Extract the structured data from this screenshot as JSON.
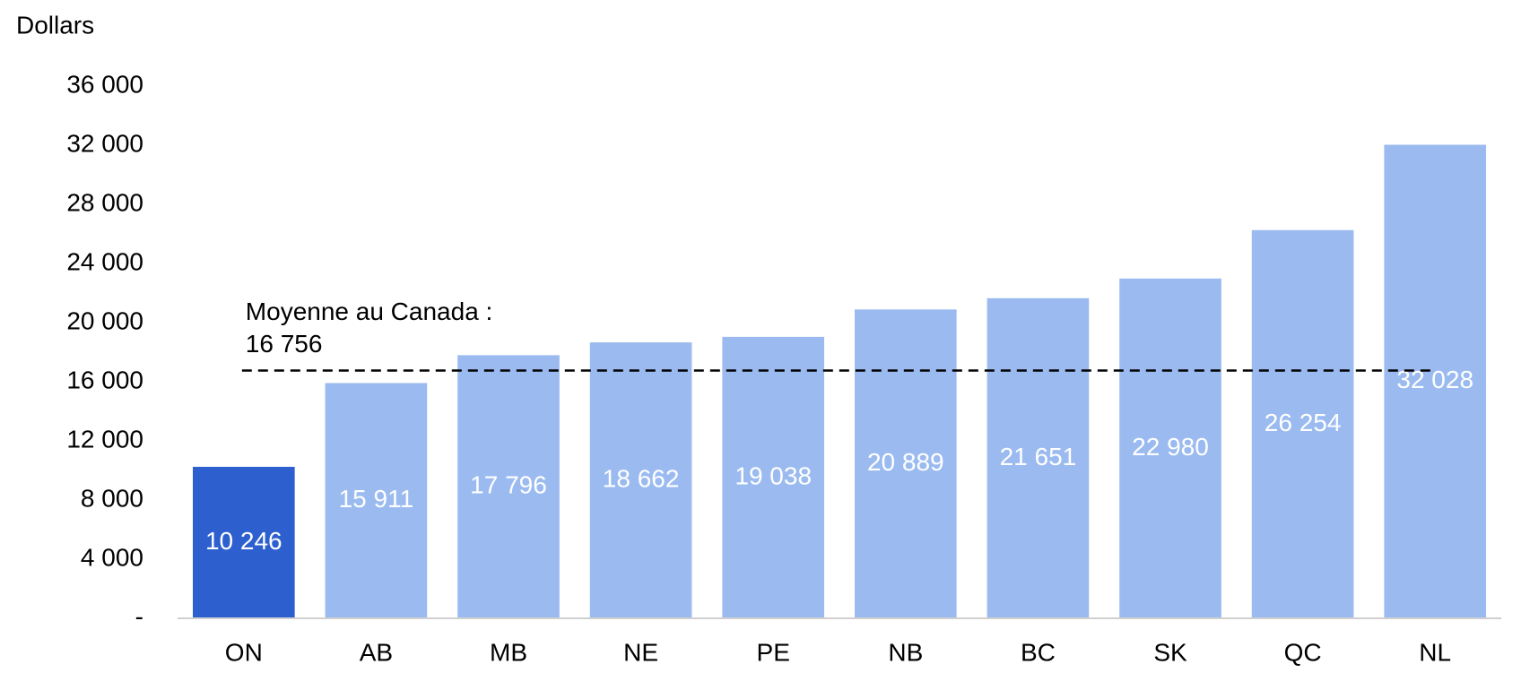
{
  "chart_data": {
    "type": "bar",
    "y_label": "Dollars",
    "categories": [
      "ON",
      "AB",
      "MB",
      "NE",
      "PE",
      "NB",
      "BC",
      "SK",
      "QC",
      "NL"
    ],
    "values": [
      10246,
      15911,
      17796,
      18662,
      19038,
      20889,
      21651,
      22980,
      26254,
      32028
    ],
    "value_labels": [
      "10 246",
      "15 911",
      "17 796",
      "18 662",
      "19 038",
      "20 889",
      "21 651",
      "22 980",
      "26 254",
      "32 028"
    ],
    "colors": [
      "#2d5fcf",
      "#9bbbf0",
      "#9bbbf0",
      "#9bbbf0",
      "#9bbbf0",
      "#9bbbf0",
      "#9bbbf0",
      "#9bbbf0",
      "#9bbbf0",
      "#9bbbf0"
    ],
    "ylim": [
      0,
      36000
    ],
    "yticks": [
      {
        "value": 0,
        "label": "-"
      },
      {
        "value": 4000,
        "label": "4 000"
      },
      {
        "value": 8000,
        "label": "8 000"
      },
      {
        "value": 12000,
        "label": "12 000"
      },
      {
        "value": 16000,
        "label": "16 000"
      },
      {
        "value": 20000,
        "label": "20 000"
      },
      {
        "value": 24000,
        "label": "24 000"
      },
      {
        "value": 28000,
        "label": "28 000"
      },
      {
        "value": 32000,
        "label": "32 000"
      },
      {
        "value": 36000,
        "label": "36 000"
      }
    ],
    "grid": false,
    "average": {
      "value": 16756,
      "label_lines": [
        "Moyenne au Canada :",
        "16 756"
      ]
    }
  }
}
